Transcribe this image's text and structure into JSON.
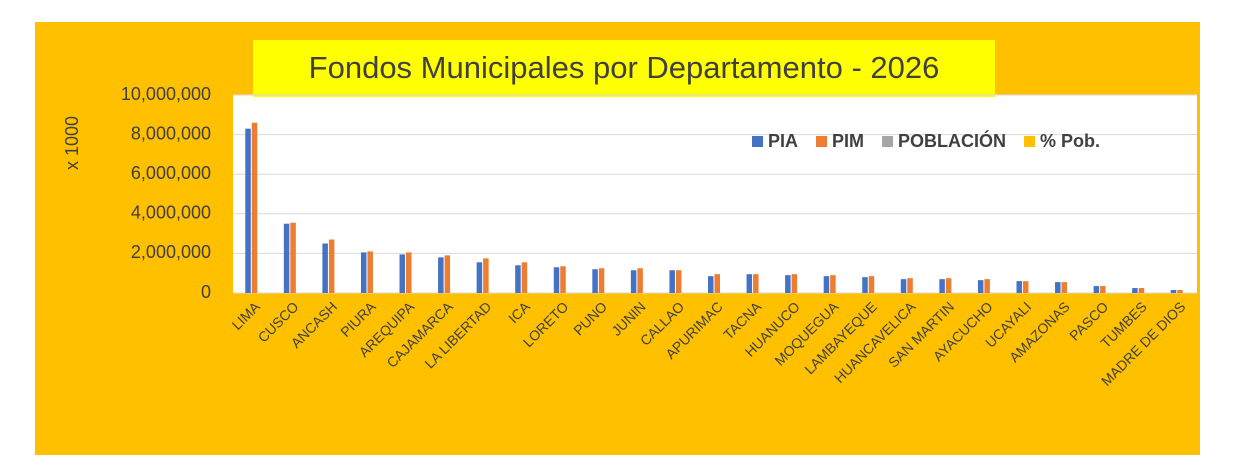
{
  "chart_data": {
    "type": "bar",
    "title": "Fondos Municipales por Departamento - 2026",
    "y_label": "x 1000",
    "categories": [
      "LIMA",
      "CUSCO",
      "ANCASH",
      "PIURA",
      "AREQUIPA",
      "CAJAMARCA",
      "LA LIBERTAD",
      "ICA",
      "LORETO",
      "PUNO",
      "JUNIN",
      "CALLAO",
      "APURIMAC",
      "TACNA",
      "HUANUCO",
      "MOQUEGUA",
      "LAMBAYEQUE",
      "HUANCAVELICA",
      "SAN MARTIN",
      "AYACUCHO",
      "UCAYALI",
      "AMAZONAS",
      "PASCO",
      "TUMBES",
      "MADRE DE DIOS"
    ],
    "series": [
      {
        "name": "PIA",
        "color": "#4472c4",
        "values": [
          8300000,
          3500000,
          2500000,
          2050000,
          1950000,
          1800000,
          1550000,
          1400000,
          1300000,
          1200000,
          1150000,
          1150000,
          850000,
          950000,
          900000,
          850000,
          800000,
          700000,
          700000,
          650000,
          600000,
          550000,
          350000,
          250000,
          150000
        ]
      },
      {
        "name": "PIM",
        "color": "#ed7d31",
        "values": [
          8600000,
          3550000,
          2700000,
          2100000,
          2050000,
          1900000,
          1750000,
          1550000,
          1350000,
          1250000,
          1250000,
          1150000,
          950000,
          950000,
          950000,
          900000,
          850000,
          750000,
          750000,
          700000,
          600000,
          550000,
          350000,
          250000,
          150000
        ]
      },
      {
        "name": "POBLACIÓN",
        "color": "#a5a5a5",
        "values": [
          null,
          null,
          null,
          null,
          null,
          null,
          null,
          null,
          null,
          null,
          null,
          null,
          null,
          null,
          null,
          null,
          null,
          null,
          null,
          null,
          null,
          null,
          null,
          null,
          null
        ]
      },
      {
        "name": "% Pob.",
        "color": "#ffc000",
        "values": [
          null,
          null,
          null,
          null,
          null,
          null,
          null,
          null,
          null,
          null,
          null,
          null,
          null,
          null,
          null,
          null,
          null,
          null,
          null,
          null,
          null,
          null,
          null,
          null,
          null
        ]
      }
    ],
    "ylim": [
      0,
      10000000
    ],
    "yticks": [
      0,
      {
        "value": 2000000,
        "label": "2,000,000"
      },
      {
        "value": 4000000,
        "label": "4,000,000"
      },
      {
        "value": 6000000,
        "label": "6,000,000"
      },
      {
        "value": 8000000,
        "label": "8,000,000"
      },
      {
        "value": 10000000,
        "label": "10,000,000"
      }
    ],
    "grid": true,
    "legend": "upper right"
  }
}
